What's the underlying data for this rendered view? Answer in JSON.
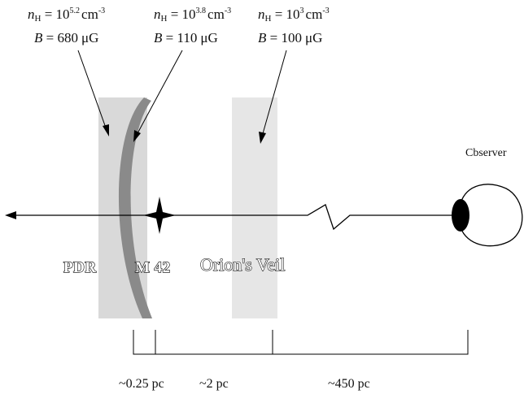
{
  "regions": [
    {
      "name": "PDR",
      "n_H": "10",
      "n_H_exp": "5.2",
      "n_H_unit": "cm",
      "n_H_unit_exp": "-3",
      "B": "680",
      "B_unit": "μG"
    },
    {
      "name": "M 42",
      "n_H": "10",
      "n_H_exp": "3.8",
      "n_H_unit": "cm",
      "n_H_unit_exp": "-3",
      "B": "110",
      "B_unit": "μG"
    },
    {
      "name": "Orion's Veil",
      "n_H": "10",
      "n_H_exp": "3",
      "n_H_unit": "cm",
      "n_H_unit_exp": "-3",
      "B": "100",
      "B_unit": "μG"
    }
  ],
  "symbols": {
    "n": "n",
    "H": "H",
    "eq": " = ",
    "B": "B"
  },
  "observer_label": "Cbserver",
  "distances": [
    "~0.25 pc",
    "~2 pc",
    "~450 pc"
  ],
  "colors": {
    "pdr_slab": "#d9d9d9",
    "m42_arc": "#8a8a8a",
    "veil_slab": "#e6e6e6",
    "line": "#000000",
    "pupil": "#000000"
  }
}
